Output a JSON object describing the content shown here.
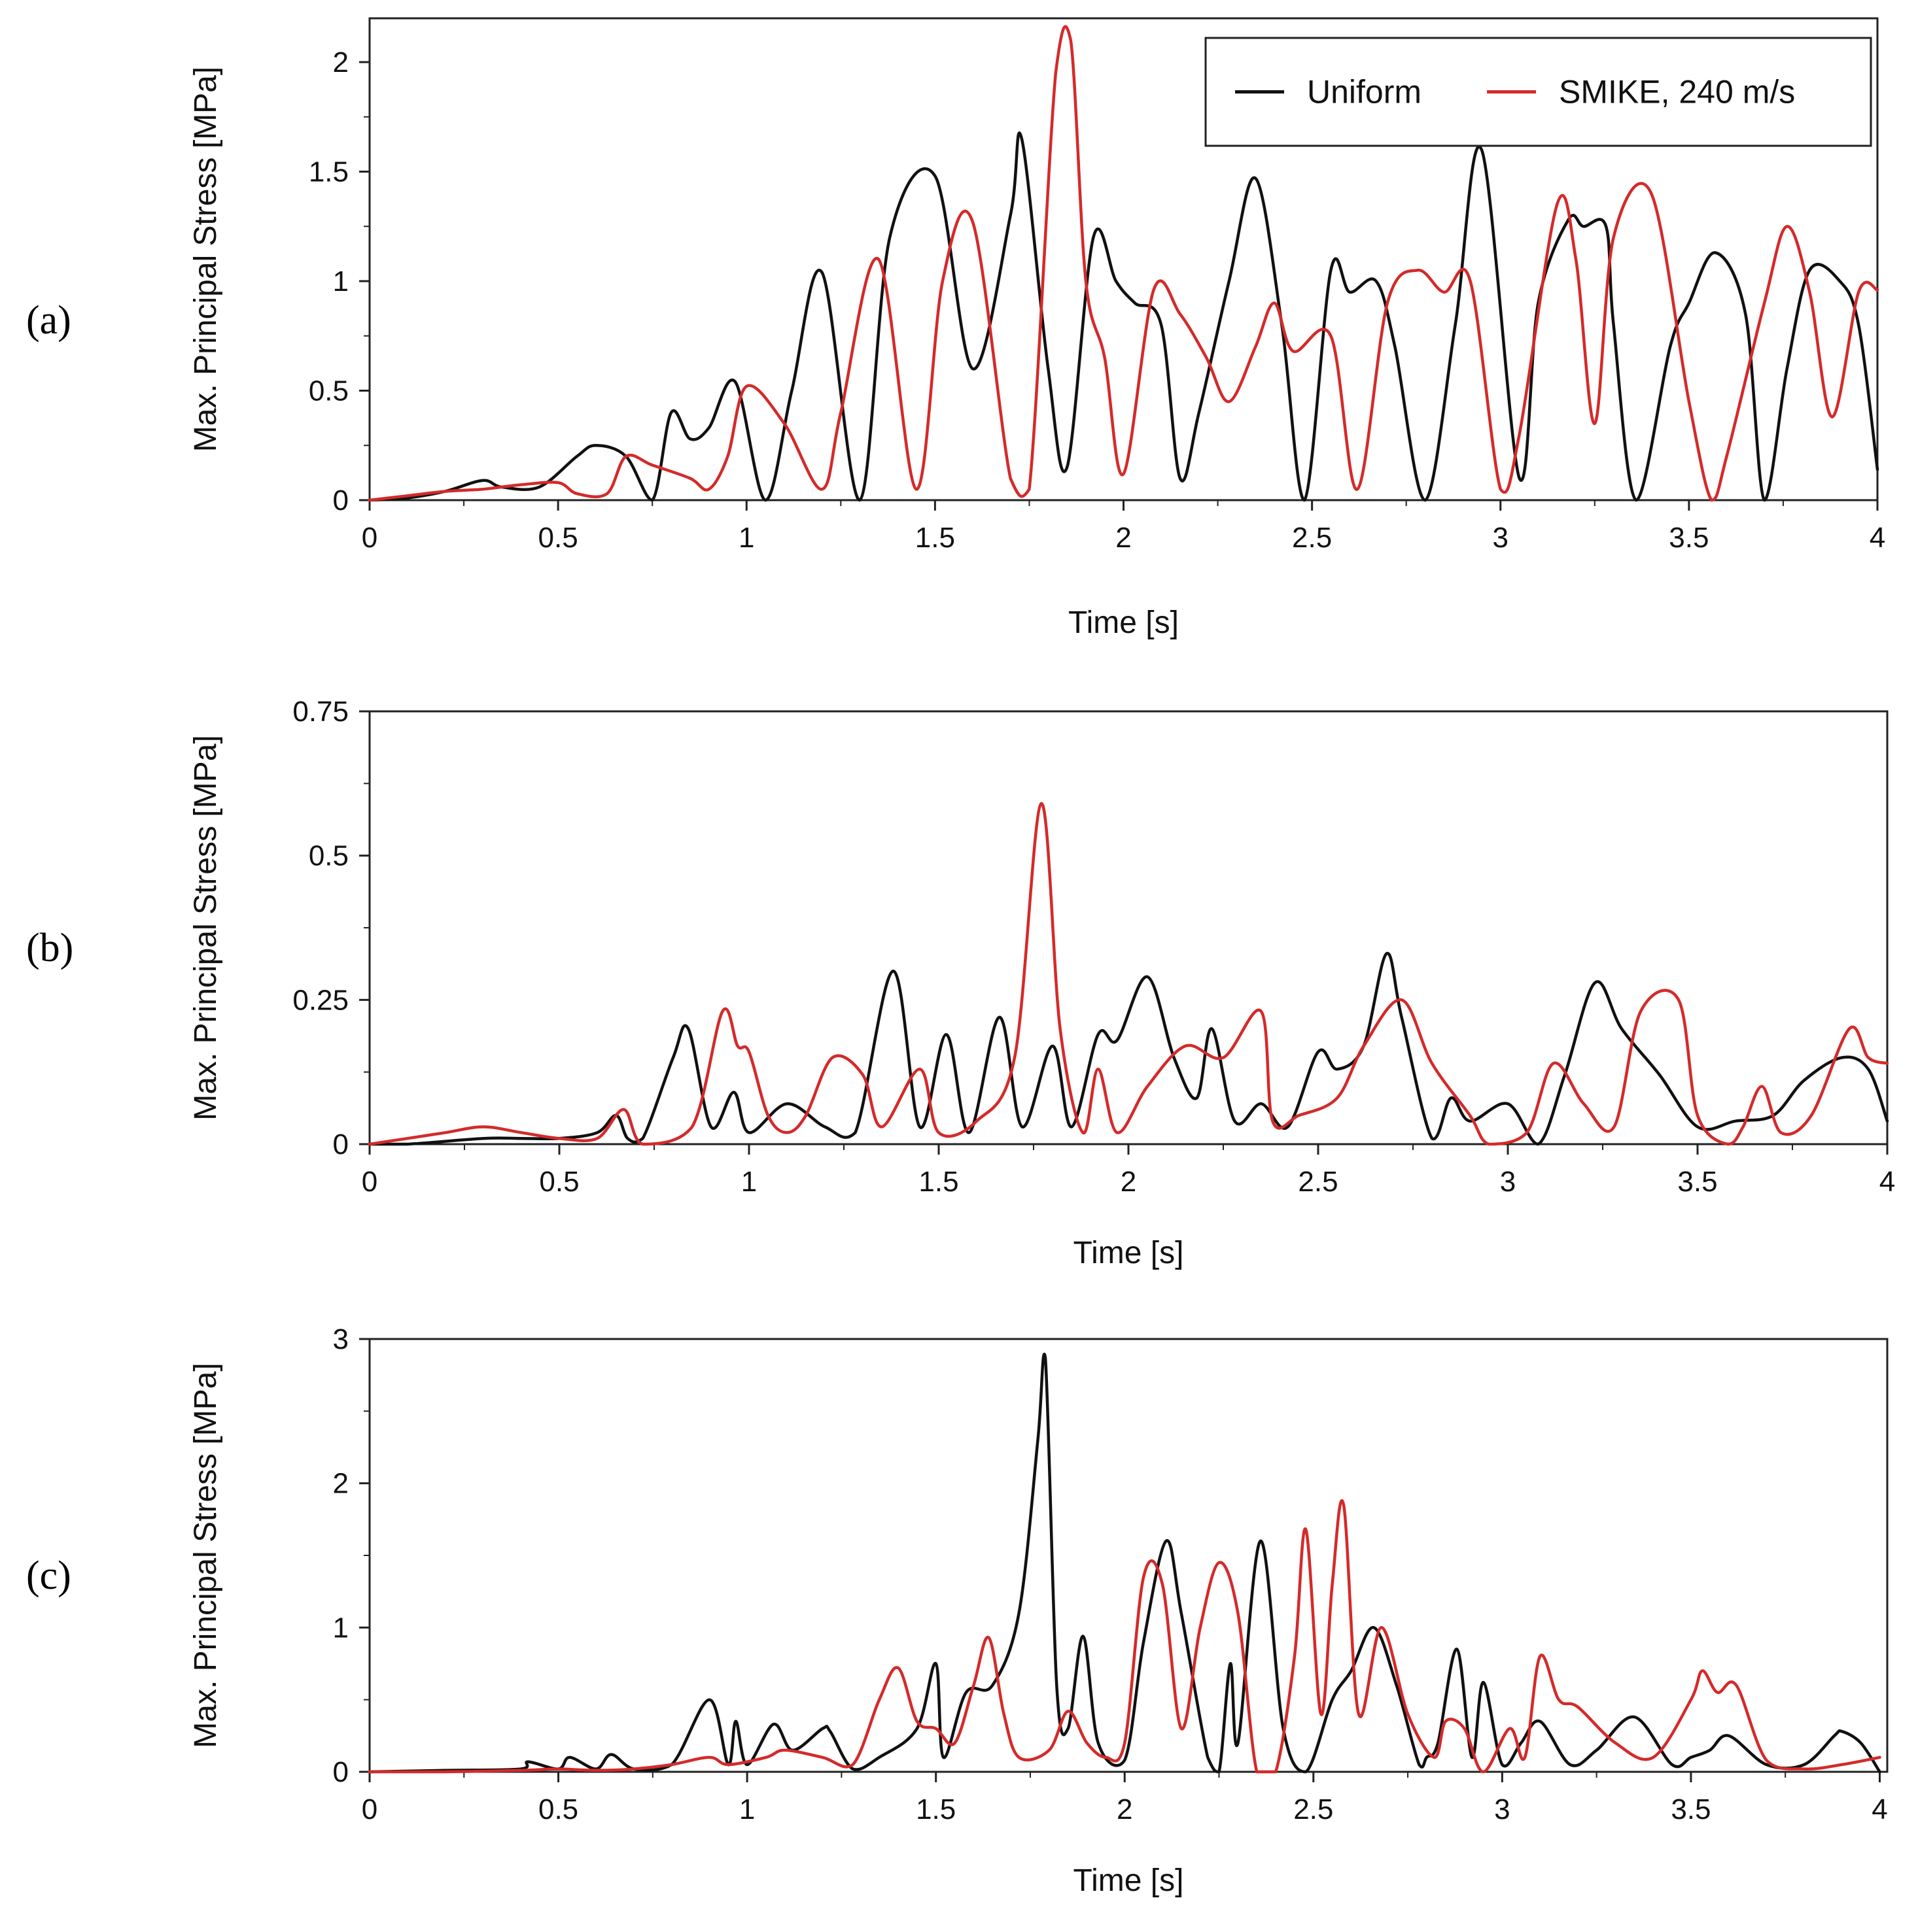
{
  "colors": {
    "uniform": "#111111",
    "smike": "#d42a2a"
  },
  "chart_data": [
    {
      "type": "line",
      "panel": "(a)",
      "panel_letter": "a",
      "xlabel": "Time [s]",
      "ylabel": "Max. Principal Stress [MPa]",
      "xlim": [
        0,
        4
      ],
      "ylim": [
        0,
        2.2
      ],
      "xticks": [
        "0",
        "0.5",
        "1",
        "1.5",
        "2",
        "2.5",
        "3",
        "3.5",
        "4"
      ],
      "yticks": [
        [
          "0",
          0
        ],
        [
          "0.5",
          0.5
        ],
        [
          "1",
          1
        ],
        [
          "1.5",
          1.5
        ],
        [
          "2",
          2
        ]
      ],
      "legend": {
        "placement": "top-right",
        "entries": [
          "Uniform",
          "SMIKE, 240 m/s"
        ]
      },
      "series": [
        {
          "name": "Uniform",
          "color_key": "uniform",
          "x": [
            0,
            0.1,
            0.2,
            0.3,
            0.35,
            0.45,
            0.55,
            0.6,
            0.68,
            0.75,
            0.8,
            0.85,
            0.9,
            0.97,
            1.05,
            1.12,
            1.2,
            1.3,
            1.38,
            1.5,
            1.6,
            1.7,
            1.73,
            1.8,
            1.85,
            1.92,
            1.98,
            2.03,
            2.1,
            2.15,
            2.2,
            2.28,
            2.35,
            2.42,
            2.48,
            2.55,
            2.6,
            2.67,
            2.72,
            2.8,
            2.88,
            2.95,
            3.05,
            3.1,
            3.18,
            3.22,
            3.28,
            3.3,
            3.36,
            3.45,
            3.5,
            3.57,
            3.65,
            3.7,
            3.76,
            3.82,
            3.9,
            3.95,
            4.0
          ],
          "y": [
            0,
            0.01,
            0.04,
            0.09,
            0.06,
            0.06,
            0.2,
            0.25,
            0.2,
            0.0,
            0.4,
            0.28,
            0.33,
            0.54,
            0.0,
            0.5,
            1.04,
            0.0,
            1.2,
            1.48,
            0.6,
            1.3,
            1.65,
            0.6,
            0.15,
            1.2,
            1.0,
            0.9,
            0.8,
            0.1,
            0.4,
            1.0,
            1.47,
            0.8,
            0.0,
            1.05,
            0.95,
            1.0,
            0.7,
            0.0,
            0.8,
            1.6,
            0.1,
            0.9,
            1.28,
            1.25,
            1.25,
            0.8,
            0.0,
            0.7,
            0.9,
            1.13,
            0.85,
            0.0,
            0.6,
            1.05,
            1.0,
            0.8,
            0.14
          ]
        },
        {
          "name": "SMIKE, 240 m/s",
          "color_key": "smike",
          "x": [
            0,
            0.1,
            0.2,
            0.3,
            0.4,
            0.5,
            0.55,
            0.63,
            0.68,
            0.75,
            0.85,
            0.9,
            0.95,
            1.0,
            1.1,
            1.2,
            1.25,
            1.35,
            1.45,
            1.52,
            1.6,
            1.7,
            1.75,
            1.82,
            1.86,
            1.9,
            1.95,
            2.0,
            2.08,
            2.15,
            2.22,
            2.28,
            2.35,
            2.4,
            2.45,
            2.55,
            2.62,
            2.7,
            2.78,
            2.85,
            2.92,
            3.0,
            3.05,
            3.15,
            3.2,
            3.25,
            3.3,
            3.4,
            3.5,
            3.56,
            3.6,
            3.7,
            3.76,
            3.82,
            3.88,
            3.95,
            4.0
          ],
          "y": [
            0,
            0.02,
            0.04,
            0.05,
            0.07,
            0.08,
            0.03,
            0.03,
            0.2,
            0.16,
            0.1,
            0.05,
            0.2,
            0.52,
            0.35,
            0.05,
            0.4,
            1.1,
            0.05,
            1.0,
            1.27,
            0.1,
            0.05,
            1.95,
            2.1,
            1.0,
            0.65,
            0.12,
            0.96,
            0.85,
            0.65,
            0.45,
            0.7,
            0.9,
            0.68,
            0.75,
            0.05,
            0.9,
            1.05,
            0.95,
            1.0,
            0.05,
            0.3,
            1.35,
            1.1,
            0.35,
            1.2,
            1.4,
            0.45,
            0.0,
            0.2,
            0.9,
            1.25,
            0.95,
            0.38,
            0.95,
            0.96
          ]
        }
      ]
    },
    {
      "type": "line",
      "panel": "(b)",
      "panel_letter": "b",
      "xlabel": "Time [s]",
      "ylabel": "Max. Principal Stress [MPa]",
      "xlim": [
        0,
        4
      ],
      "ylim": [
        0,
        0.75
      ],
      "xticks": [
        "0",
        "0.5",
        "1",
        "1.5",
        "2",
        "2.5",
        "3",
        "3.5",
        "4"
      ],
      "yticks": [
        [
          "0",
          0
        ],
        [
          "0.25",
          0.25
        ],
        [
          "0.5",
          0.5
        ],
        [
          "0.75",
          0.75
        ]
      ],
      "series": [
        {
          "name": "Uniform",
          "color_key": "uniform",
          "x": [
            0,
            0.1,
            0.3,
            0.4,
            0.5,
            0.6,
            0.65,
            0.68,
            0.72,
            0.8,
            0.84,
            0.9,
            0.96,
            1.0,
            1.1,
            1.2,
            1.28,
            1.38,
            1.45,
            1.52,
            1.58,
            1.66,
            1.72,
            1.8,
            1.85,
            1.92,
            1.97,
            2.05,
            2.12,
            2.18,
            2.22,
            2.28,
            2.35,
            2.42,
            2.5,
            2.55,
            2.62,
            2.68,
            2.72,
            2.8,
            2.85,
            2.9,
            3.0,
            3.08,
            3.15,
            3.23,
            3.3,
            3.4,
            3.5,
            3.6,
            3.7,
            3.78,
            3.88,
            3.95,
            4.0
          ],
          "y": [
            0,
            0.0,
            0.01,
            0.01,
            0.01,
            0.02,
            0.05,
            0.01,
            0.01,
            0.15,
            0.2,
            0.03,
            0.09,
            0.02,
            0.07,
            0.03,
            0.02,
            0.3,
            0.03,
            0.19,
            0.02,
            0.22,
            0.03,
            0.17,
            0.03,
            0.19,
            0.18,
            0.29,
            0.15,
            0.08,
            0.2,
            0.04,
            0.07,
            0.03,
            0.16,
            0.13,
            0.17,
            0.33,
            0.22,
            0.01,
            0.08,
            0.04,
            0.07,
            0.0,
            0.12,
            0.28,
            0.2,
            0.12,
            0.03,
            0.04,
            0.05,
            0.11,
            0.15,
            0.13,
            0.04
          ]
        },
        {
          "name": "SMIKE, 240 m/s",
          "color_key": "smike",
          "x": [
            0,
            0.1,
            0.2,
            0.3,
            0.4,
            0.5,
            0.6,
            0.67,
            0.72,
            0.85,
            0.93,
            0.97,
            1.0,
            1.05,
            1.1,
            1.15,
            1.22,
            1.3,
            1.35,
            1.45,
            1.5,
            1.6,
            1.7,
            1.77,
            1.82,
            1.88,
            1.92,
            1.97,
            2.05,
            2.15,
            2.25,
            2.35,
            2.38,
            2.45,
            2.55,
            2.62,
            2.72,
            2.8,
            2.9,
            2.95,
            3.05,
            3.12,
            3.2,
            3.28,
            3.35,
            3.45,
            3.5,
            3.58,
            3.62,
            3.67,
            3.72,
            3.8,
            3.9,
            3.95,
            4.0
          ],
          "y": [
            0,
            0.01,
            0.02,
            0.03,
            0.02,
            0.01,
            0.01,
            0.06,
            0.0,
            0.03,
            0.23,
            0.17,
            0.16,
            0.05,
            0.02,
            0.05,
            0.15,
            0.12,
            0.03,
            0.13,
            0.02,
            0.04,
            0.15,
            0.59,
            0.2,
            0.02,
            0.13,
            0.02,
            0.1,
            0.17,
            0.15,
            0.23,
            0.04,
            0.05,
            0.08,
            0.17,
            0.25,
            0.14,
            0.05,
            0.0,
            0.02,
            0.14,
            0.07,
            0.03,
            0.23,
            0.25,
            0.05,
            0.0,
            0.03,
            0.1,
            0.02,
            0.05,
            0.2,
            0.15,
            0.14
          ]
        }
      ]
    },
    {
      "type": "line",
      "panel": "(c)",
      "panel_letter": "c",
      "xlabel": "Time [s]",
      "ylabel": "Max. Principal Stress [MPa]",
      "xlim": [
        0,
        4.02
      ],
      "ylim": [
        0,
        3
      ],
      "xticks": [
        "0",
        "0.5",
        "1",
        "1.5",
        "2",
        "2.5",
        "3",
        "3.5",
        "4"
      ],
      "yticks": [
        [
          "0",
          0
        ],
        [
          "1",
          1
        ],
        [
          "2",
          2
        ],
        [
          "3",
          3
        ]
      ],
      "series": [
        {
          "name": "Uniform",
          "color_key": "uniform",
          "x": [
            0,
            0.2,
            0.4,
            0.42,
            0.5,
            0.53,
            0.6,
            0.64,
            0.7,
            0.8,
            0.9,
            0.95,
            0.97,
            1.0,
            1.07,
            1.12,
            1.2,
            1.22,
            1.28,
            1.35,
            1.45,
            1.5,
            1.52,
            1.58,
            1.65,
            1.72,
            1.77,
            1.79,
            1.82,
            1.85,
            1.89,
            1.93,
            2.0,
            2.05,
            2.11,
            2.15,
            2.22,
            2.25,
            2.28,
            2.3,
            2.36,
            2.42,
            2.48,
            2.55,
            2.6,
            2.66,
            2.72,
            2.78,
            2.8,
            2.83,
            2.88,
            2.92,
            2.95,
            3.0,
            3.05,
            3.1,
            3.18,
            3.25,
            3.35,
            3.45,
            3.5,
            3.55,
            3.6,
            3.7,
            3.8,
            3.88,
            3.9,
            3.95,
            4.0
          ],
          "y": [
            0,
            0.01,
            0.02,
            0.07,
            0.02,
            0.1,
            0.02,
            0.12,
            0.02,
            0.05,
            0.5,
            0.05,
            0.35,
            0.05,
            0.33,
            0.15,
            0.3,
            0.28,
            0.02,
            0.1,
            0.3,
            0.75,
            0.1,
            0.55,
            0.6,
            1.1,
            2.3,
            2.87,
            0.6,
            0.3,
            0.94,
            0.2,
            0.08,
            0.9,
            1.6,
            1.1,
            0.1,
            0.0,
            0.75,
            0.2,
            1.6,
            0.3,
            0.0,
            0.5,
            0.7,
            1.0,
            0.6,
            0.05,
            0.1,
            0.2,
            0.85,
            0.1,
            0.62,
            0.05,
            0.2,
            0.35,
            0.05,
            0.15,
            0.38,
            0.05,
            0.1,
            0.15,
            0.25,
            0.05,
            0.05,
            0.25,
            0.28,
            0.2,
            0.0
          ]
        },
        {
          "name": "SMIKE, 240 m/s",
          "color_key": "smike",
          "x": [
            0,
            0.2,
            0.4,
            0.5,
            0.6,
            0.7,
            0.8,
            0.9,
            0.95,
            1.05,
            1.1,
            1.2,
            1.28,
            1.35,
            1.4,
            1.45,
            1.5,
            1.55,
            1.6,
            1.64,
            1.68,
            1.72,
            1.8,
            1.85,
            1.9,
            1.95,
            2.0,
            2.05,
            2.1,
            2.15,
            2.2,
            2.25,
            2.3,
            2.35,
            2.4,
            2.45,
            2.48,
            2.52,
            2.55,
            2.58,
            2.62,
            2.68,
            2.75,
            2.82,
            2.85,
            2.9,
            2.95,
            3.02,
            3.06,
            3.1,
            3.15,
            3.2,
            3.3,
            3.4,
            3.5,
            3.53,
            3.57,
            3.62,
            3.7,
            3.8,
            3.9,
            4.0
          ],
          "y": [
            0,
            0.0,
            0.01,
            0.02,
            0.01,
            0.02,
            0.05,
            0.1,
            0.05,
            0.1,
            0.15,
            0.1,
            0.05,
            0.5,
            0.72,
            0.35,
            0.3,
            0.2,
            0.6,
            0.93,
            0.4,
            0.1,
            0.15,
            0.42,
            0.2,
            0.1,
            0.2,
            1.35,
            1.3,
            0.3,
            1.0,
            1.45,
            1.1,
            0.0,
            0.0,
            0.8,
            1.68,
            0.4,
            1.3,
            1.85,
            0.4,
            1.0,
            0.4,
            0.1,
            0.35,
            0.3,
            0.0,
            0.3,
            0.1,
            0.8,
            0.5,
            0.45,
            0.2,
            0.1,
            0.5,
            0.7,
            0.55,
            0.6,
            0.08,
            0.02,
            0.05,
            0.1
          ]
        }
      ]
    }
  ]
}
